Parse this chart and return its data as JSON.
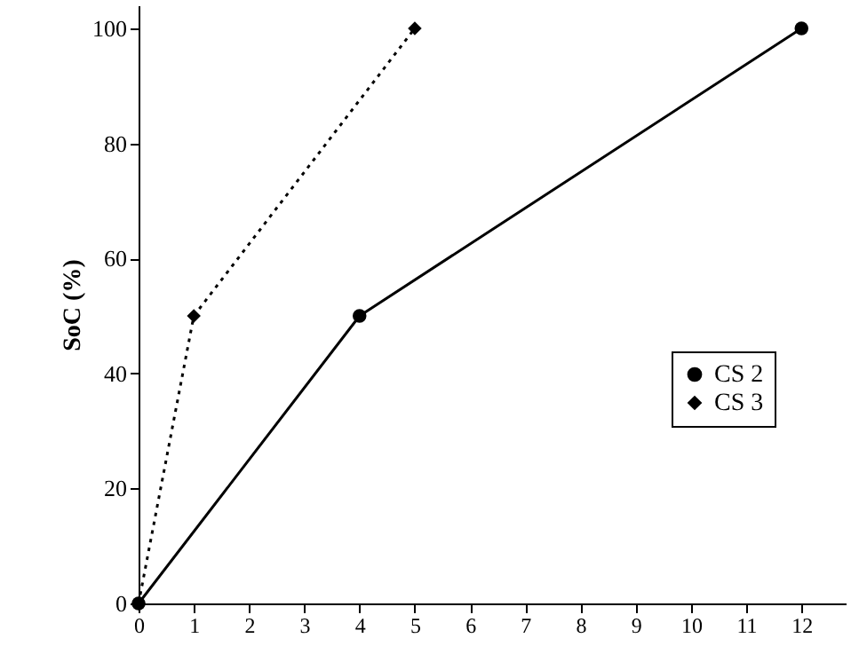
{
  "chart_data": {
    "type": "line",
    "ylabel": "SoC (%)",
    "xlim": [
      0,
      12.8
    ],
    "ylim": [
      0,
      104
    ],
    "xticks": [
      0,
      1,
      2,
      3,
      4,
      5,
      6,
      7,
      8,
      9,
      10,
      11,
      12
    ],
    "yticks": [
      0,
      20,
      40,
      60,
      80,
      100
    ],
    "grid": false,
    "legend": "right",
    "series": [
      {
        "name": "CS 2",
        "color": "#000000",
        "x": [
          0,
          4,
          12
        ],
        "values": [
          0,
          50,
          100
        ],
        "marker": "circle",
        "line_style": "solid"
      },
      {
        "name": "CS 3",
        "color": "#000000",
        "x": [
          0,
          1,
          5
        ],
        "values": [
          0,
          50,
          100
        ],
        "marker": "diamond",
        "line_style": "dotted"
      }
    ]
  }
}
